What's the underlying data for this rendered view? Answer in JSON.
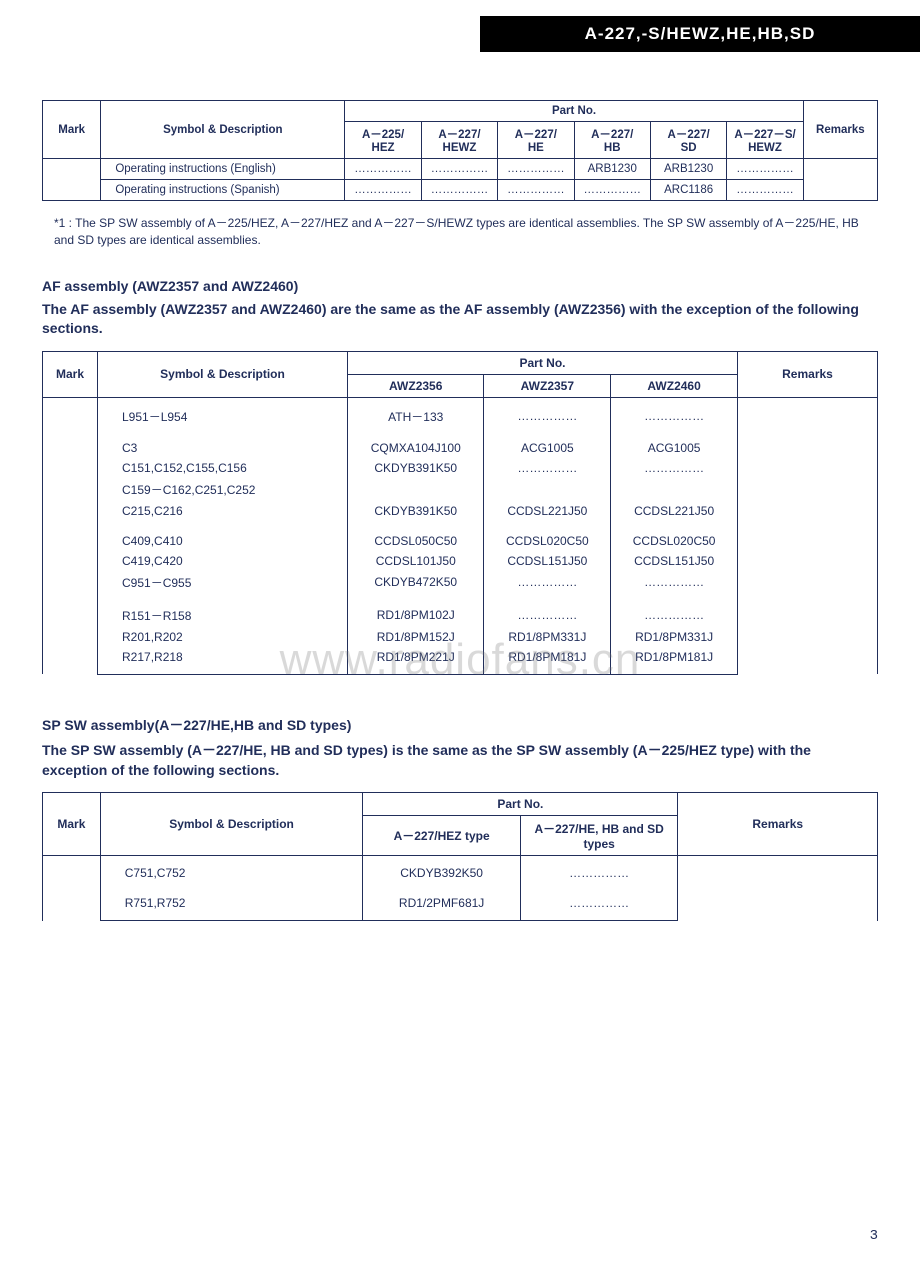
{
  "colors": {
    "text": "#212e5a",
    "border": "#212e5a",
    "header_bg": "#000000",
    "header_fg": "#ffffff",
    "page_bg": "#ffffff",
    "watermark": "rgba(120,120,120,0.28)"
  },
  "typography": {
    "body_font": "Arial, Helvetica, sans-serif",
    "header_font": "Arial Black",
    "base_size_pt": 12,
    "title_size_pt": 14
  },
  "header_band": "A-227,-S/HEWZ,HE,HB,SD",
  "watermark": "www.radiofans.cn",
  "page_number": "3",
  "dot": "……………",
  "table1": {
    "col_mark": "Mark",
    "col_sym": "Symbol & Description",
    "col_partno": "Part No.",
    "col_remarks": "Remarks",
    "subcols": [
      "A－225/\nHEZ",
      "A－227/\nHEWZ",
      "A－227/\nHE",
      "A－227/\nHB",
      "A－227/\nSD",
      "A－227－S/\nHEWZ"
    ],
    "rows": [
      {
        "sym": "Operating instructions (English)",
        "vals": [
          "……………",
          "……………",
          "……………",
          "ARB1230",
          "ARB1230",
          "……………"
        ]
      },
      {
        "sym": "Operating instructions (Spanish)",
        "vals": [
          "……………",
          "……………",
          "……………",
          "……………",
          "ARC1186",
          "……………"
        ]
      }
    ]
  },
  "footnote1": "*1 : The SP SW assembly of A－225/HEZ, A－227/HEZ and A－227－S/HEWZ types are identical assemblies. The SP SW assembly of A－225/HE, HB and SD types are identical assemblies.",
  "section2": {
    "title": "AF assembly (AWZ2357 and AWZ2460)",
    "sub": "The AF assembly (AWZ2357 and AWZ2460) are the same as the AF assembly (AWZ2356) with the exception of the following sections."
  },
  "table2": {
    "col_mark": "Mark",
    "col_sym": "Symbol & Description",
    "col_partno": "Part No.",
    "col_remarks": "Remarks",
    "subcols": [
      "AWZ2356",
      "AWZ2357",
      "AWZ2460"
    ],
    "rows": [
      {
        "sym": "L951－L954",
        "vals": [
          "ATH－133",
          "……………",
          "……………"
        ]
      },
      {
        "gap": true
      },
      {
        "sym": "C3",
        "vals": [
          "CQMXA104J100",
          "ACG1005",
          "ACG1005"
        ]
      },
      {
        "sym": "C151,C152,C155,C156",
        "vals": [
          "CKDYB391K50",
          "……………",
          "……………"
        ]
      },
      {
        "sym": "C159－C162,C251,C252",
        "vals": [
          "",
          "",
          ""
        ]
      },
      {
        "sym": "C215,C216",
        "vals": [
          "CKDYB391K50",
          "CCDSL221J50",
          "CCDSL221J50"
        ]
      },
      {
        "gap": true
      },
      {
        "sym": "C409,C410",
        "vals": [
          "CCDSL050C50",
          "CCDSL020C50",
          "CCDSL020C50"
        ]
      },
      {
        "sym": "C419,C420",
        "vals": [
          "CCDSL101J50",
          "CCDSL151J50",
          "CCDSL151J50"
        ]
      },
      {
        "sym": "C951－C955",
        "vals": [
          "CKDYB472K50",
          "……………",
          "……………"
        ]
      },
      {
        "gap": true
      },
      {
        "sym": "R151－R158",
        "vals": [
          "RD1/8PM102J",
          "……………",
          "……………"
        ]
      },
      {
        "sym": "R201,R202",
        "vals": [
          "RD1/8PM152J",
          "RD1/8PM331J",
          "RD1/8PM331J"
        ]
      },
      {
        "sym": "R217,R218",
        "vals": [
          "RD1/8PM221J",
          "RD1/8PM181J",
          "RD1/8PM181J"
        ]
      }
    ]
  },
  "section3": {
    "title": "SP SW assembly(A－227/HE,HB and SD types)",
    "sub": "The SP SW assembly (A－227/HE, HB and SD types) is the same as the SP SW assembly (A－225/HEZ type) with the exception of the following sections."
  },
  "table3": {
    "col_mark": "Mark",
    "col_sym": "Symbol & Description",
    "col_partno": "Part No.",
    "col_remarks": "Remarks",
    "subcols": [
      "A－227/HEZ type",
      "A－227/HE, HB and SD types"
    ],
    "rows": [
      {
        "sym": "C751,C752",
        "vals": [
          "CKDYB392K50",
          "……………"
        ]
      },
      {
        "gap": true
      },
      {
        "sym": "R751,R752",
        "vals": [
          "RD1/2PMF681J",
          "……………"
        ]
      }
    ]
  }
}
